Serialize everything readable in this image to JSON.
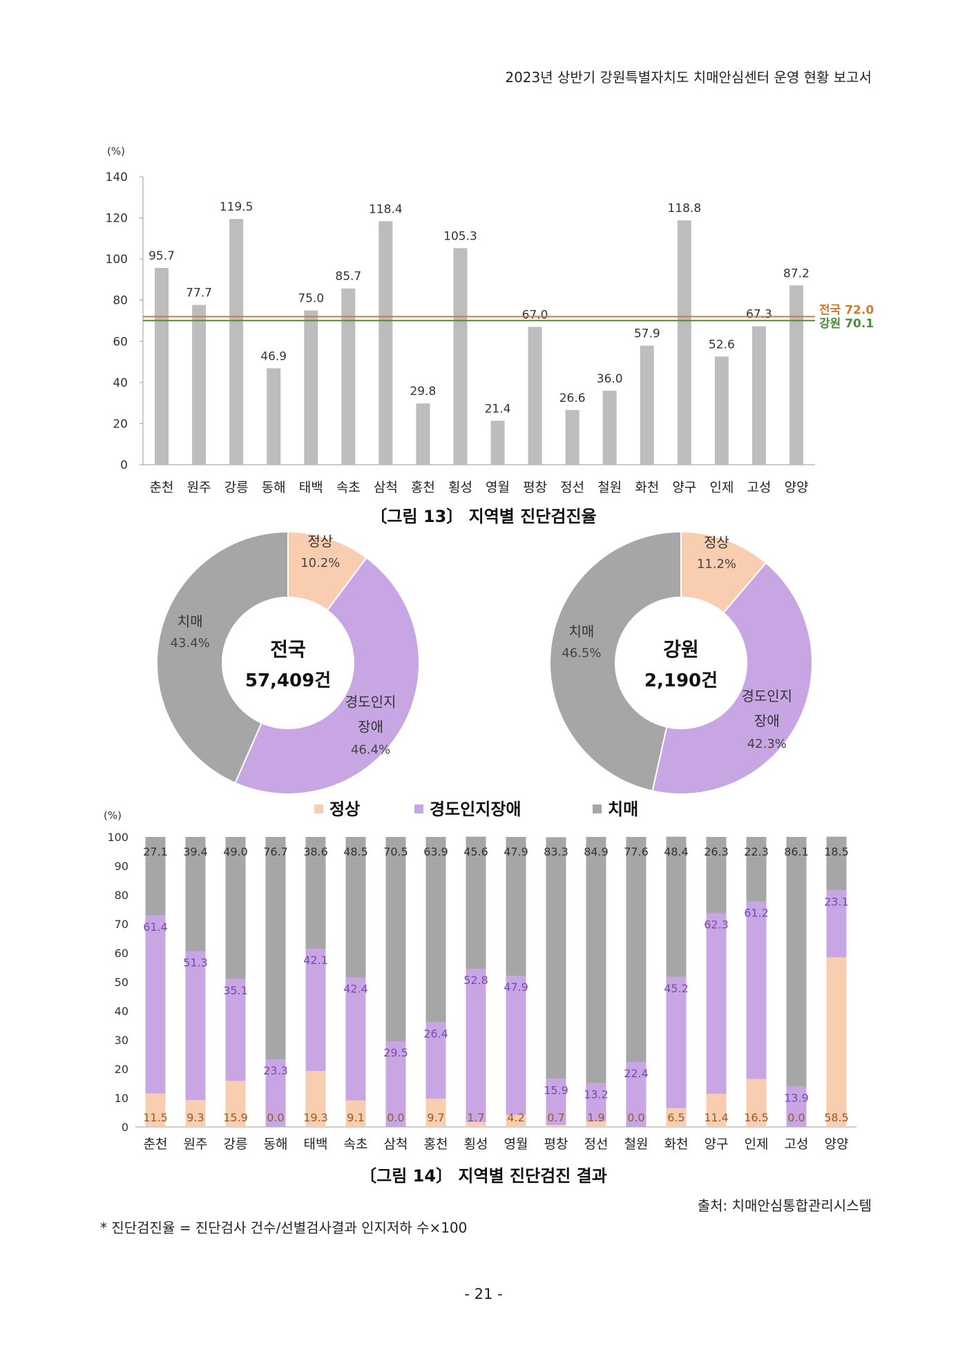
{
  "header": "2023년 상반기 강원특별자치도 치매안심센터 운영 현황 보고서",
  "colors": {
    "bar_gray": "#bdbdbd",
    "national_line": "#d4782f",
    "gangwon_line": "#4e8b36",
    "normal": "#f9cdb0",
    "mci": "#c7a6e3",
    "dementia": "#a6a6a6",
    "mci_text": "#7b48b0",
    "normal_text": "#9a5b25"
  },
  "regions": [
    "춘천",
    "원주",
    "강릉",
    "동해",
    "태백",
    "속초",
    "삼척",
    "홍천",
    "횡성",
    "영월",
    "평창",
    "정선",
    "철원",
    "화천",
    "양구",
    "인제",
    "고성",
    "양양"
  ],
  "figure13": {
    "caption": "〔그림 13〕 지역별 진단검진율",
    "chart_data": {
      "type": "bar",
      "unit_label": "(%)",
      "ylim": [
        0,
        140
      ],
      "yticks": [
        0,
        20,
        40,
        60,
        80,
        100,
        120,
        140
      ],
      "categories": [
        "춘천",
        "원주",
        "강릉",
        "동해",
        "태백",
        "속초",
        "삼척",
        "홍천",
        "횡성",
        "영월",
        "평창",
        "정선",
        "철원",
        "화천",
        "양구",
        "인제",
        "고성",
        "양양"
      ],
      "values": [
        95.7,
        77.7,
        119.5,
        46.9,
        75.0,
        85.7,
        118.4,
        29.8,
        105.3,
        21.4,
        67.0,
        26.6,
        36.0,
        57.9,
        118.8,
        52.6,
        67.3,
        87.2
      ],
      "value_labels": [
        "95.7",
        "77.7",
        "119.5",
        "46.9",
        "75.0",
        "85.7",
        "118.4",
        "29.8",
        "105.3",
        "21.4",
        "67.0",
        "26.6",
        "36.0",
        "57.9",
        "118.8",
        "52.6",
        "67.3",
        "87.2"
      ],
      "reference_lines": [
        {
          "name": "전국",
          "value": 72.0,
          "label": "전국 72.0"
        },
        {
          "name": "강원",
          "value": 70.1,
          "label": "강원 70.1"
        }
      ]
    }
  },
  "donuts": [
    {
      "center_title": "전국",
      "center_count": "57,409건",
      "chart_data": {
        "type": "pie",
        "labels": [
          "정상",
          "경도인지장애",
          "치매"
        ],
        "values": [
          10.2,
          46.4,
          43.4
        ],
        "value_labels": [
          "10.2%",
          "46.4%",
          "43.4%"
        ]
      }
    },
    {
      "center_title": "강원",
      "center_count": "2,190건",
      "chart_data": {
        "type": "pie",
        "labels": [
          "정상",
          "경도인지장애",
          "치매"
        ],
        "values": [
          11.2,
          42.3,
          46.5
        ],
        "value_labels": [
          "11.2%",
          "42.3%",
          "46.5%"
        ]
      }
    }
  ],
  "donut_label_lines": {
    "normal": "정상",
    "mci_line1": "경도인지",
    "mci_line2": "장애",
    "dementia": "치매"
  },
  "figure14": {
    "caption": "〔그림 14〕 지역별 진단검진 결과",
    "chart_data": {
      "type": "bar",
      "stacked": true,
      "unit_label": "(%)",
      "ylim": [
        0,
        100
      ],
      "yticks": [
        0,
        10,
        20,
        30,
        40,
        50,
        60,
        70,
        80,
        90,
        100
      ],
      "legend_position": "top",
      "categories": [
        "춘천",
        "원주",
        "강릉",
        "동해",
        "태백",
        "속초",
        "삼척",
        "홍천",
        "횡성",
        "영월",
        "평창",
        "정선",
        "철원",
        "화천",
        "양구",
        "인제",
        "고성",
        "양양"
      ],
      "series": [
        {
          "name": "정상",
          "values": [
            11.5,
            9.3,
            15.9,
            0.0,
            19.3,
            9.1,
            0.0,
            9.7,
            1.7,
            4.2,
            0.7,
            1.9,
            0.0,
            6.5,
            11.4,
            16.5,
            0.0,
            58.5
          ],
          "labels": [
            "11.5",
            "9.3",
            "15.9",
            "0.0",
            "19.3",
            "9.1",
            "0.0",
            "9.7",
            "1.7",
            "4.2",
            "0.7",
            "1.9",
            "0.0",
            "6.5",
            "11.4",
            "16.5",
            "0.0",
            "58.5"
          ]
        },
        {
          "name": "경도인지장애",
          "values": [
            61.4,
            51.3,
            35.1,
            23.3,
            42.1,
            42.4,
            29.5,
            26.4,
            52.8,
            47.9,
            15.9,
            13.2,
            22.4,
            45.2,
            62.3,
            61.2,
            13.9,
            23.1
          ],
          "labels": [
            "61.4",
            "51.3",
            "35.1",
            "23.3",
            "42.1",
            "42.4",
            "29.5",
            "26.4",
            "52.8",
            "47.9",
            "15.9",
            "13.2",
            "22.4",
            "45.2",
            "62.3",
            "61.2",
            "13.9",
            "23.1"
          ]
        },
        {
          "name": "치매",
          "values": [
            27.1,
            39.4,
            49.0,
            76.7,
            38.6,
            48.5,
            70.5,
            63.9,
            45.6,
            47.9,
            83.3,
            84.9,
            77.6,
            48.4,
            26.3,
            22.3,
            86.1,
            18.5
          ],
          "labels": [
            "27.1",
            "39.4",
            "49.0",
            "76.7",
            "38.6",
            "48.5",
            "70.5",
            "63.9",
            "45.6",
            "47.9",
            "83.3",
            "84.9",
            "77.6",
            "48.4",
            "26.3",
            "22.3",
            "86.1",
            "18.5"
          ]
        }
      ]
    }
  },
  "source": "출처: 치매안심통합관리시스템",
  "footnote": "* 진단검진율 = 진단검사 건수/선별검사결과 인지저하 수×100",
  "page_number": "- 21 -"
}
